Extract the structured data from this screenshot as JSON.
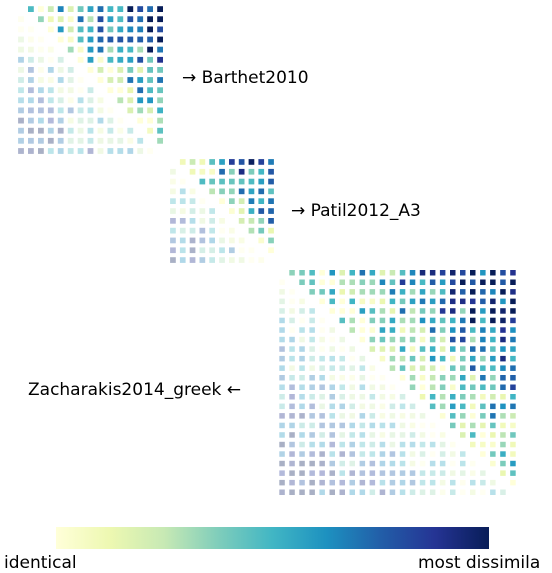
{
  "chart_data": {
    "type": "heatmap",
    "matrices": [
      {
        "name": "Barthet2010",
        "label": "→ Barthet2010",
        "n": 15
      },
      {
        "name": "Patil2012_A3",
        "label": "→ Patil2012_A3",
        "n": 11
      },
      {
        "name": "Zacharakis2014_greek",
        "label": "Zacharakis2014_greek ←",
        "n": 24
      }
    ],
    "upper_triangle_encoding": "dissimilarity",
    "lower_triangle_encoding": "pale tint of same values",
    "colorbar": {
      "colormap": "YlGnBu",
      "min_label": "identical",
      "max_label": "most dissimila",
      "stops": [
        "#ffffd9",
        "#edf8b1",
        "#c7e9b4",
        "#7fcdbb",
        "#41b6c4",
        "#1d91c0",
        "#225ea8",
        "#253494",
        "#081d58"
      ]
    }
  }
}
